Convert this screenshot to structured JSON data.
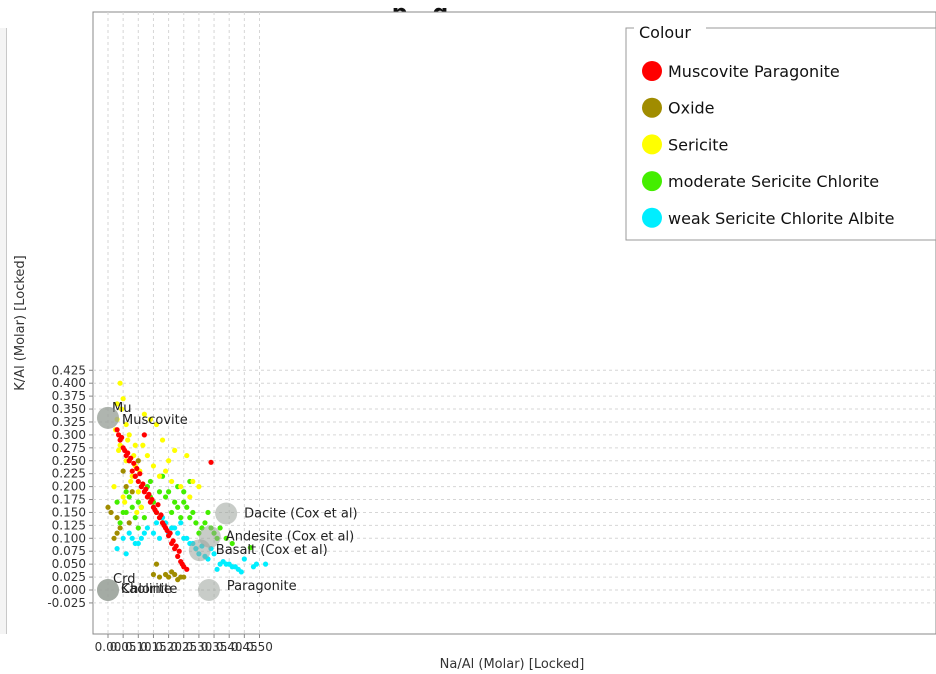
{
  "chart_data": {
    "type": "scatter",
    "title": "...p...g...",
    "xlabel": "Na/Al (Molar) [Locked]",
    "ylabel": "K/Al (Molar) [Locked]",
    "xlim": [
      -0.012,
      0.54
    ],
    "ylim": [
      -0.027,
      0.44
    ],
    "x_ticks": [
      "0.00",
      "0.05",
      "0.10",
      "0.15",
      "0.20",
      "0.25",
      "0.30",
      "0.35",
      "0.40",
      "0.45",
      "0.50"
    ],
    "y_ticks": [
      "-0.025",
      "0.000",
      "0.025",
      "0.050",
      "0.075",
      "0.100",
      "0.125",
      "0.150",
      "0.175",
      "0.200",
      "0.225",
      "0.250",
      "0.275",
      "0.300",
      "0.325",
      "0.350",
      "0.375",
      "0.400",
      "0.425"
    ],
    "grid": true,
    "legend": {
      "title": "Colour",
      "placement": "top-right",
      "entries": [
        {
          "name": "Muscovite Paragonite",
          "color": "#ff0000"
        },
        {
          "name": "Oxide",
          "color": "#a08c00"
        },
        {
          "name": "Sericite",
          "color": "#ffff00"
        },
        {
          "name": "moderate Sericite Chlorite",
          "color": "#44ee00"
        },
        {
          "name": "weak Sericite Chlorite Albite",
          "color": "#00eeff"
        }
      ]
    },
    "series": [
      {
        "name": "Muscovite Paragonite",
        "color": "#ff0000",
        "x": [
          0.03,
          0.04,
          0.05,
          0.06,
          0.07,
          0.08,
          0.09,
          0.1,
          0.11,
          0.12,
          0.13,
          0.14,
          0.15,
          0.16,
          0.17,
          0.18,
          0.19,
          0.2,
          0.21,
          0.22,
          0.23,
          0.24,
          0.25,
          0.26,
          0.035,
          0.055,
          0.075,
          0.095,
          0.115,
          0.135,
          0.155,
          0.175,
          0.195,
          0.215,
          0.235,
          0.045,
          0.065,
          0.085,
          0.105,
          0.125,
          0.145,
          0.165,
          0.185,
          0.205,
          0.225,
          0.245,
          0.34,
          0.12
        ],
        "y": [
          0.31,
          0.29,
          0.275,
          0.26,
          0.25,
          0.23,
          0.22,
          0.21,
          0.2,
          0.19,
          0.18,
          0.17,
          0.16,
          0.15,
          0.14,
          0.13,
          0.12,
          0.105,
          0.09,
          0.08,
          0.065,
          0.055,
          0.045,
          0.04,
          0.3,
          0.27,
          0.255,
          0.235,
          0.205,
          0.185,
          0.155,
          0.145,
          0.115,
          0.095,
          0.075,
          0.295,
          0.265,
          0.245,
          0.225,
          0.195,
          0.175,
          0.165,
          0.125,
          0.11,
          0.085,
          0.05,
          0.247,
          0.3
        ]
      },
      {
        "name": "Oxide",
        "color": "#a08c00",
        "x": [
          0.0,
          0.02,
          0.03,
          0.04,
          0.06,
          0.08,
          0.1,
          0.15,
          0.17,
          0.19,
          0.2,
          0.21,
          0.23,
          0.24,
          0.25,
          0.01,
          0.03,
          0.05,
          0.07,
          0.09,
          0.16,
          0.22
        ],
        "y": [
          0.16,
          0.1,
          0.14,
          0.12,
          0.2,
          0.19,
          0.25,
          0.03,
          0.025,
          0.03,
          0.025,
          0.035,
          0.02,
          0.025,
          0.025,
          0.15,
          0.11,
          0.23,
          0.13,
          0.22,
          0.05,
          0.03
        ]
      },
      {
        "name": "Sericite",
        "color": "#ffff00",
        "x": [
          0.04,
          0.05,
          0.03,
          0.07,
          0.06,
          0.08,
          0.02,
          0.05,
          0.09,
          0.1,
          0.04,
          0.12,
          0.14,
          0.16,
          0.18,
          0.2,
          0.22,
          0.26,
          0.28,
          0.3,
          0.03,
          0.06,
          0.09,
          0.11,
          0.13,
          0.15,
          0.17,
          0.19,
          0.21,
          0.24,
          0.27,
          0.045,
          0.065,
          0.035,
          0.075,
          0.055,
          0.085,
          0.025,
          0.095,
          0.105,
          0.115
        ],
        "y": [
          0.4,
          0.37,
          0.33,
          0.3,
          0.25,
          0.22,
          0.2,
          0.18,
          0.24,
          0.19,
          0.28,
          0.34,
          0.33,
          0.32,
          0.29,
          0.25,
          0.27,
          0.26,
          0.21,
          0.2,
          0.36,
          0.32,
          0.28,
          0.16,
          0.26,
          0.24,
          0.22,
          0.23,
          0.21,
          0.2,
          0.18,
          0.35,
          0.29,
          0.27,
          0.21,
          0.17,
          0.26,
          0.31,
          0.15,
          0.23,
          0.28
        ]
      },
      {
        "name": "moderate Sericite Chlorite",
        "color": "#44ee00",
        "x": [
          0.03,
          0.05,
          0.07,
          0.09,
          0.11,
          0.13,
          0.15,
          0.17,
          0.19,
          0.21,
          0.23,
          0.25,
          0.27,
          0.29,
          0.31,
          0.33,
          0.35,
          0.37,
          0.39,
          0.41,
          0.04,
          0.06,
          0.08,
          0.1,
          0.12,
          0.14,
          0.16,
          0.18,
          0.2,
          0.22,
          0.24,
          0.26,
          0.28,
          0.3,
          0.32,
          0.34,
          0.36,
          0.47,
          0.25,
          0.27,
          0.23,
          0.18,
          0.14,
          0.1,
          0.06
        ],
        "y": [
          0.17,
          0.15,
          0.18,
          0.14,
          0.16,
          0.2,
          0.17,
          0.19,
          0.18,
          0.15,
          0.16,
          0.17,
          0.14,
          0.13,
          0.12,
          0.15,
          0.11,
          0.12,
          0.1,
          0.09,
          0.13,
          0.19,
          0.16,
          0.12,
          0.14,
          0.18,
          0.15,
          0.13,
          0.19,
          0.17,
          0.14,
          0.16,
          0.15,
          0.11,
          0.13,
          0.12,
          0.1,
          0.082,
          0.19,
          0.21,
          0.2,
          0.22,
          0.21,
          0.17,
          0.15
        ]
      },
      {
        "name": "weak Sericite Chlorite Albite",
        "color": "#00eeff",
        "x": [
          0.05,
          0.07,
          0.09,
          0.11,
          0.13,
          0.15,
          0.17,
          0.19,
          0.21,
          0.23,
          0.25,
          0.27,
          0.29,
          0.31,
          0.33,
          0.35,
          0.37,
          0.39,
          0.41,
          0.43,
          0.45,
          0.49,
          0.52,
          0.03,
          0.06,
          0.08,
          0.1,
          0.12,
          0.16,
          0.18,
          0.2,
          0.22,
          0.24,
          0.26,
          0.28,
          0.3,
          0.32,
          0.34,
          0.36,
          0.38,
          0.4,
          0.42,
          0.44,
          0.48
        ],
        "y": [
          0.1,
          0.11,
          0.09,
          0.1,
          0.12,
          0.11,
          0.1,
          0.13,
          0.12,
          0.11,
          0.1,
          0.09,
          0.08,
          0.085,
          0.06,
          0.07,
          0.05,
          0.05,
          0.045,
          0.04,
          0.06,
          0.05,
          0.05,
          0.08,
          0.07,
          0.1,
          0.09,
          0.11,
          0.13,
          0.14,
          0.11,
          0.12,
          0.13,
          0.1,
          0.09,
          0.07,
          0.065,
          0.08,
          0.04,
          0.055,
          0.05,
          0.045,
          0.035,
          0.045
        ]
      }
    ],
    "reference_points": [
      {
        "label": "Mu",
        "x": 0.0,
        "y": 0.333
      },
      {
        "label": "Muscovite",
        "x": 0.0,
        "y": 0.333
      },
      {
        "label": "Dacite (Cox et al)",
        "x": 0.39,
        "y": 0.148
      },
      {
        "label": "Andesite (Cox et al)",
        "x": 0.336,
        "y": 0.103
      },
      {
        "label": "Basalt (Cox et al)",
        "x": 0.303,
        "y": 0.077
      },
      {
        "label": "Paragonite",
        "x": 0.333,
        "y": 0.0
      },
      {
        "label": "Crd",
        "x": 0.0,
        "y": 0.0
      },
      {
        "label": "Kaolinite",
        "x": 0.0,
        "y": 0.0
      },
      {
        "label": "Chlorite",
        "x": 0.0,
        "y": 0.0
      }
    ]
  }
}
